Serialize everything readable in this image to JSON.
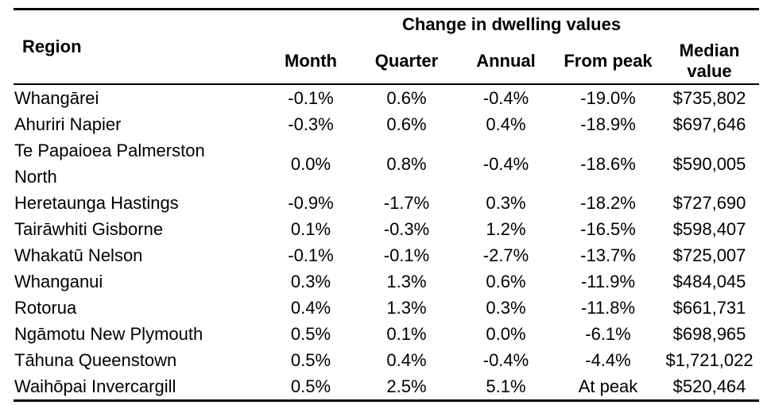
{
  "chart_data": {
    "type": "table",
    "title": "Change in dwelling values",
    "columns": [
      "Region",
      "Month",
      "Quarter",
      "Annual",
      "From peak",
      "Median value"
    ],
    "rows": [
      {
        "region": "Whangārei",
        "month": "-0.1%",
        "quarter": "0.6%",
        "annual": "-0.4%",
        "from_peak": "-19.0%",
        "median_value": "$735,802"
      },
      {
        "region": "Ahuriri Napier",
        "month": "-0.3%",
        "quarter": "0.6%",
        "annual": "0.4%",
        "from_peak": "-18.9%",
        "median_value": "$697,646"
      },
      {
        "region": "Te Papaioea Palmerston\nNorth",
        "month": "0.0%",
        "quarter": "0.8%",
        "annual": "-0.4%",
        "from_peak": "-18.6%",
        "median_value": "$590,005"
      },
      {
        "region": "Heretaunga Hastings",
        "month": "-0.9%",
        "quarter": "-1.7%",
        "annual": "0.3%",
        "from_peak": "-18.2%",
        "median_value": "$727,690"
      },
      {
        "region": "Tairāwhiti Gisborne",
        "month": "0.1%",
        "quarter": "-0.3%",
        "annual": "1.2%",
        "from_peak": "-16.5%",
        "median_value": "$598,407"
      },
      {
        "region": "Whakatū Nelson",
        "month": "-0.1%",
        "quarter": "-0.1%",
        "annual": "-2.7%",
        "from_peak": "-13.7%",
        "median_value": "$725,007"
      },
      {
        "region": "Whanganui",
        "month": "0.3%",
        "quarter": "1.3%",
        "annual": "0.6%",
        "from_peak": "-11.9%",
        "median_value": "$484,045"
      },
      {
        "region": "Rotorua",
        "month": "0.4%",
        "quarter": "1.3%",
        "annual": "0.3%",
        "from_peak": "-11.8%",
        "median_value": "$661,731"
      },
      {
        "region": "Ngāmotu New Plymouth",
        "month": "0.5%",
        "quarter": "0.1%",
        "annual": "0.0%",
        "from_peak": "-6.1%",
        "median_value": "$698,965"
      },
      {
        "region": "Tāhuna Queenstown",
        "month": "0.5%",
        "quarter": "0.4%",
        "annual": "-0.4%",
        "from_peak": "-4.4%",
        "median_value": "$1,721,022"
      },
      {
        "region": "Waihōpai Invercargill",
        "month": "0.5%",
        "quarter": "2.5%",
        "annual": "5.1%",
        "from_peak": "At peak",
        "median_value": "$520,464"
      }
    ]
  }
}
